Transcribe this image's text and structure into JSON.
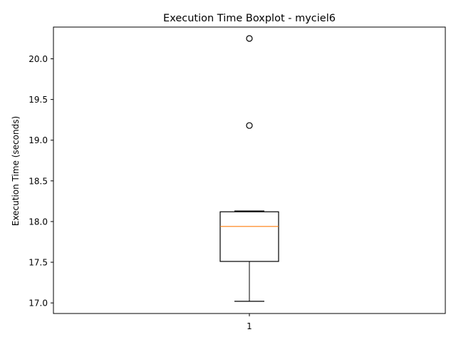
{
  "chart_data": {
    "type": "boxplot",
    "title": "Execution Time Boxplot - myciel6",
    "xlabel": "",
    "ylabel": "Execution Time (seconds)",
    "categories": [
      "1"
    ],
    "ylim": [
      16.87,
      20.39
    ],
    "yticks": [
      17.0,
      17.5,
      18.0,
      18.5,
      19.0,
      19.5,
      20.0
    ],
    "ytick_labels": [
      "17.0",
      "17.5",
      "18.0",
      "18.5",
      "19.0",
      "19.5",
      "20.0"
    ],
    "grid": false,
    "boxes": [
      {
        "category": "1",
        "whisker_low": 17.02,
        "q1": 17.51,
        "median": 17.94,
        "q3": 18.12,
        "whisker_high": 18.13,
        "outliers": [
          19.18,
          20.25
        ]
      }
    ],
    "colors": {
      "box": "#000000",
      "median": "#ff7f0e",
      "outlier": "#000000"
    }
  }
}
